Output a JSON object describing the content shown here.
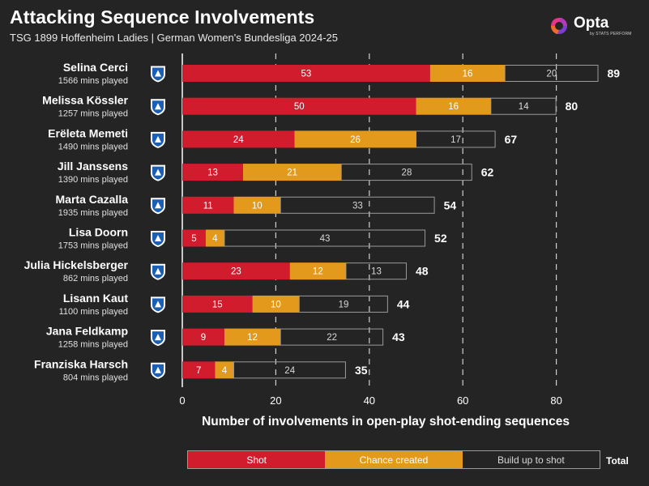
{
  "header": {
    "title": "Attacking Sequence Involvements",
    "subtitle": "TSG 1899 Hoffenheim Ladies | German Women's Bundesliga 2024-25"
  },
  "brand": {
    "name": "Opta",
    "tagline": "by STATS PERFORM"
  },
  "legend": {
    "shot": "Shot",
    "chance": "Chance created",
    "build": "Build up to shot",
    "total": "Total"
  },
  "colors": {
    "background": "#242424",
    "shot": "#d01c2c",
    "chance": "#e39a1c",
    "build_border": "#9a9a9a",
    "grid": "#cfcfcf"
  },
  "chart_data": {
    "type": "bar",
    "orientation": "horizontal",
    "stacked": true,
    "xlabel": "Number of involvements in open-play shot-ending sequences",
    "xlim": [
      0,
      89
    ],
    "xticks": [
      0,
      20,
      40,
      60,
      80
    ],
    "grid": "vertical dashed",
    "legend_position": "bottom",
    "categories": [
      {
        "name": "Selina Cerci",
        "mins": "1566 mins played",
        "total": 89
      },
      {
        "name": "Melissa Kössler",
        "mins": "1257 mins played",
        "total": 80
      },
      {
        "name": "Erëleta Memeti",
        "mins": "1490 mins played",
        "total": 67
      },
      {
        "name": "Jill Janssens",
        "mins": "1390 mins played",
        "total": 62
      },
      {
        "name": "Marta Cazalla",
        "mins": "1935 mins played",
        "total": 54
      },
      {
        "name": "Lisa Doorn",
        "mins": "1753 mins played",
        "total": 52
      },
      {
        "name": "Julia Hickelsberger",
        "mins": "862 mins played",
        "total": 48
      },
      {
        "name": "Lisann Kaut",
        "mins": "1100 mins played",
        "total": 44
      },
      {
        "name": "Jana Feldkamp",
        "mins": "1258 mins played",
        "total": 43
      },
      {
        "name": "Franziska Harsch",
        "mins": "804 mins played",
        "total": 35
      }
    ],
    "series": [
      {
        "name": "Shot",
        "color": "#d01c2c",
        "values": [
          53,
          50,
          24,
          13,
          11,
          5,
          23,
          15,
          9,
          7
        ]
      },
      {
        "name": "Chance created",
        "color": "#e39a1c",
        "values": [
          16,
          16,
          26,
          21,
          10,
          4,
          12,
          10,
          12,
          4
        ]
      },
      {
        "name": "Build up to shot",
        "color": "none",
        "values": [
          20,
          14,
          17,
          28,
          33,
          43,
          13,
          19,
          22,
          24
        ]
      }
    ]
  }
}
